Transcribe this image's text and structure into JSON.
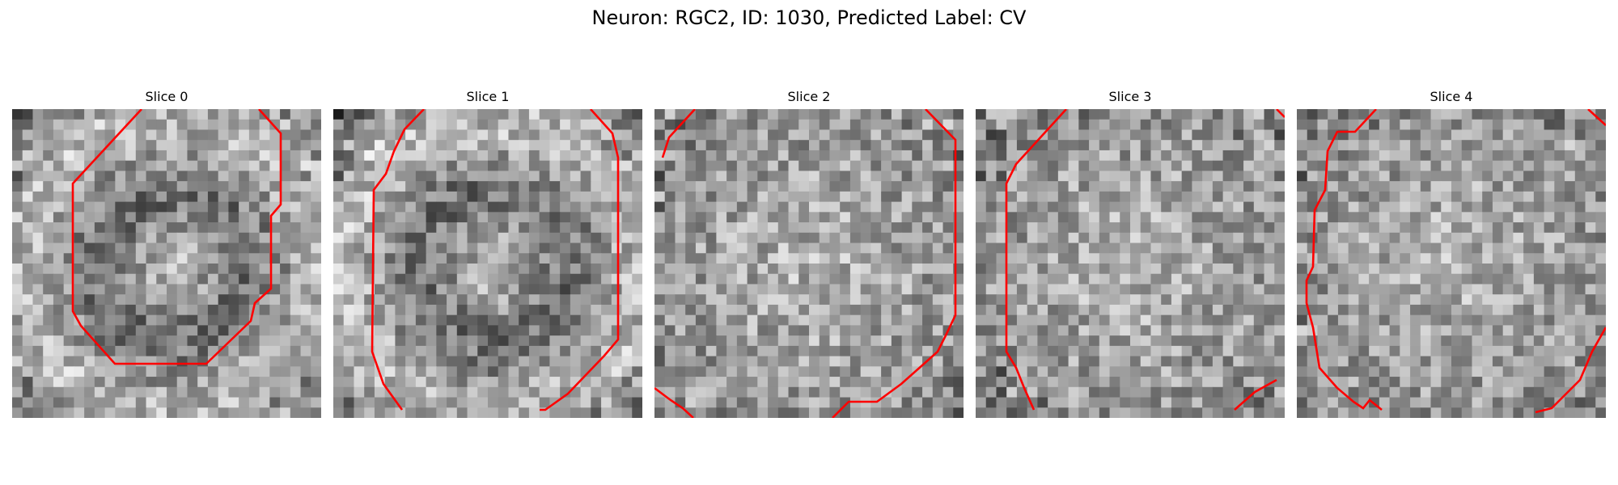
{
  "figure": {
    "title": "Neuron: RGC2, ID: 1030, Predicted Label: CV"
  },
  "panels": [
    {
      "title": "Slice 0"
    },
    {
      "title": "Slice 1"
    },
    {
      "title": "Slice 2"
    },
    {
      "title": "Slice 3"
    },
    {
      "title": "Slice 4"
    }
  ],
  "style": {
    "contour_color": "#ff0000",
    "colormap": "grayscale"
  }
}
